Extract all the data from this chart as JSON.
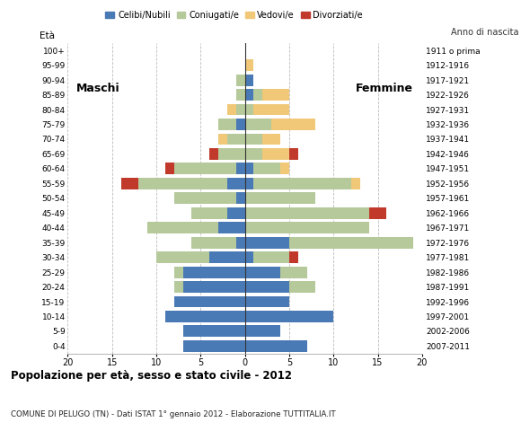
{
  "age_groups": [
    "0-4",
    "5-9",
    "10-14",
    "15-19",
    "20-24",
    "25-29",
    "30-34",
    "35-39",
    "40-44",
    "45-49",
    "50-54",
    "55-59",
    "60-64",
    "65-69",
    "70-74",
    "75-79",
    "80-84",
    "85-89",
    "90-94",
    "95-99",
    "100+"
  ],
  "birth_years": [
    "2007-2011",
    "2002-2006",
    "1997-2001",
    "1992-1996",
    "1987-1991",
    "1982-1986",
    "1977-1981",
    "1972-1976",
    "1967-1971",
    "1962-1966",
    "1957-1961",
    "1952-1956",
    "1947-1951",
    "1942-1946",
    "1937-1941",
    "1932-1936",
    "1927-1931",
    "1922-1926",
    "1917-1921",
    "1912-1916",
    "1911 o prima"
  ],
  "maschi": {
    "celibi": [
      7,
      7,
      9,
      8,
      7,
      7,
      4,
      1,
      3,
      2,
      1,
      2,
      1,
      0,
      0,
      1,
      0,
      0,
      0,
      0,
      0
    ],
    "coniugati": [
      0,
      0,
      0,
      0,
      1,
      1,
      6,
      5,
      8,
      4,
      7,
      10,
      7,
      3,
      2,
      2,
      1,
      1,
      1,
      0,
      0
    ],
    "vedovi": [
      0,
      0,
      0,
      0,
      0,
      0,
      0,
      0,
      0,
      0,
      0,
      0,
      0,
      0,
      1,
      0,
      1,
      0,
      0,
      0,
      0
    ],
    "divorziati": [
      0,
      0,
      0,
      0,
      0,
      0,
      0,
      0,
      0,
      0,
      0,
      2,
      1,
      1,
      0,
      0,
      0,
      0,
      0,
      0,
      0
    ]
  },
  "femmine": {
    "nubili": [
      7,
      4,
      10,
      5,
      5,
      4,
      1,
      5,
      0,
      0,
      0,
      1,
      1,
      0,
      0,
      0,
      0,
      1,
      1,
      0,
      0
    ],
    "coniugate": [
      0,
      0,
      0,
      0,
      3,
      3,
      4,
      14,
      14,
      14,
      8,
      11,
      3,
      2,
      2,
      3,
      1,
      1,
      0,
      0,
      0
    ],
    "vedove": [
      0,
      0,
      0,
      0,
      0,
      0,
      0,
      0,
      0,
      0,
      0,
      1,
      1,
      3,
      2,
      5,
      4,
      3,
      0,
      1,
      0
    ],
    "divorziate": [
      0,
      0,
      0,
      0,
      0,
      0,
      1,
      0,
      0,
      2,
      0,
      0,
      0,
      1,
      0,
      0,
      0,
      0,
      0,
      0,
      0
    ]
  },
  "colors": {
    "celibi": "#4a7ab5",
    "coniugati": "#b5c99a",
    "vedovi": "#f0c878",
    "divorziati": "#c0392b"
  },
  "title": "Popolazione per età, sesso e stato civile - 2012",
  "subtitle": "COMUNE DI PELUGO (TN) - Dati ISTAT 1° gennaio 2012 - Elaborazione TUTTITALIA.IT",
  "label_eta": "Età",
  "label_anno": "Anno di nascita",
  "label_maschi": "Maschi",
  "label_femmine": "Femmine",
  "legend_labels": [
    "Celibi/Nubili",
    "Coniugati/e",
    "Vedovi/e",
    "Divorziati/e"
  ],
  "xlim": 20,
  "background_color": "#ffffff",
  "grid_color": "#bbbbbb"
}
